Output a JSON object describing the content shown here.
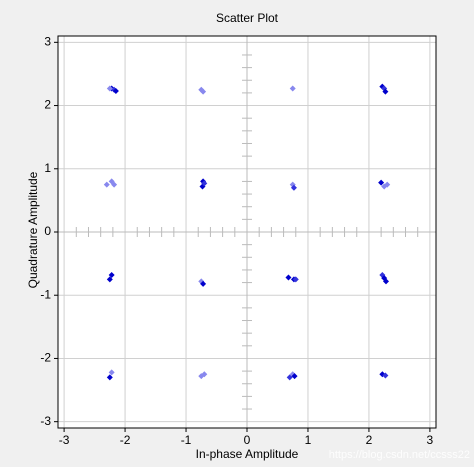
{
  "chart_data": {
    "type": "scatter",
    "title": "Scatter Plot",
    "x_label": "In-phase Amplitude",
    "y_label": "Quadrature Amplitude",
    "watermark": "https://blog.csdn.net/ccsss22",
    "xlim": [
      -3.1,
      3.1
    ],
    "ylim": [
      -3.1,
      3.1
    ],
    "xticks": [
      -3,
      -2,
      -1,
      0,
      1,
      2,
      3
    ],
    "yticks": [
      -3,
      -2,
      -1,
      0,
      1,
      2,
      3
    ],
    "grid": true,
    "x": [
      -2.22,
      -2.18,
      -2.25,
      -2.15,
      -0.75,
      -0.72,
      0.75,
      2.22,
      2.25,
      2.27,
      -2.3,
      -2.22,
      -2.18,
      -0.72,
      -0.73,
      -0.7,
      0.75,
      0.77,
      2.2,
      2.25,
      2.3,
      -2.22,
      -2.25,
      -0.75,
      -0.72,
      0.68,
      0.77,
      0.8,
      2.22,
      2.25,
      2.28,
      -2.22,
      -2.25,
      -0.75,
      -0.7,
      0.7,
      0.75,
      0.78,
      2.22,
      2.27
    ],
    "values": [
      2.27,
      2.25,
      2.27,
      2.23,
      2.25,
      2.22,
      2.27,
      2.3,
      2.27,
      2.22,
      0.75,
      0.8,
      0.75,
      0.8,
      0.72,
      0.77,
      0.75,
      0.7,
      0.78,
      0.72,
      0.75,
      -0.68,
      -0.75,
      -0.78,
      -0.82,
      -0.72,
      -0.75,
      -0.75,
      -0.68,
      -0.73,
      -0.78,
      -2.22,
      -2.3,
      -2.28,
      -2.25,
      -2.3,
      -2.25,
      -2.28,
      -2.25,
      -2.27
    ],
    "colors": [
      "#0000cc",
      "#3333dd",
      "#8888ee",
      "#0000cc",
      "#8888ee",
      "#8888ee",
      "#8888ee",
      "#0000cc",
      "#3333dd",
      "#0000cc",
      "#8888ee",
      "#8888ee",
      "#8888ee",
      "#0000cc",
      "#0000cc",
      "#3333dd",
      "#8888ee",
      "#3333dd",
      "#0000cc",
      "#8888ee",
      "#8888ee",
      "#0000cc",
      "#0000cc",
      "#8888ee",
      "#0000cc",
      "#0000cc",
      "#0000cc",
      "#3333dd",
      "#3333dd",
      "#0000cc",
      "#0000cc",
      "#8888ee",
      "#0000cc",
      "#8888ee",
      "#8888ee",
      "#3333dd",
      "#8888ee",
      "#0000cc",
      "#0000cc",
      "#3333dd"
    ]
  }
}
